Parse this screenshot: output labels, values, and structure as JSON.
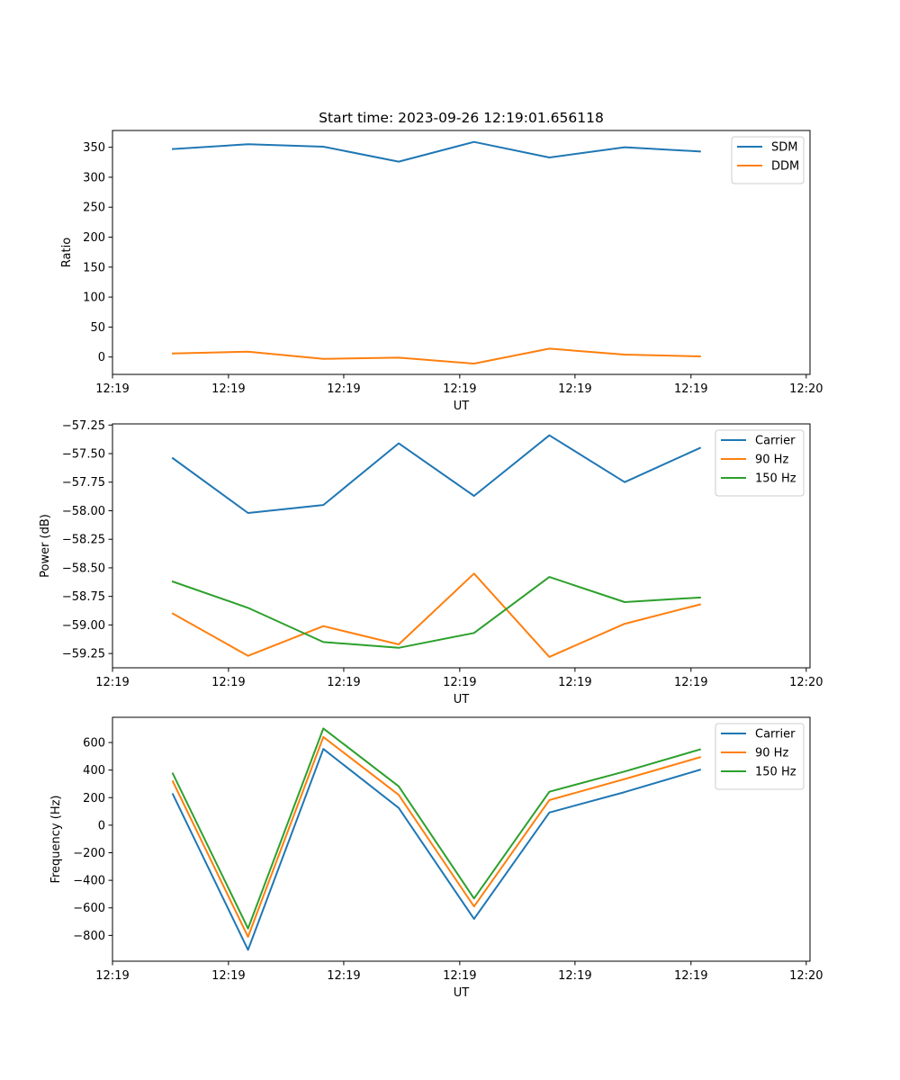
{
  "chart_data": [
    {
      "type": "line",
      "title": "Start time: 2023-09-26 12:19:01.656118",
      "xlabel": "UT",
      "ylabel": "Ratio",
      "xticks": [
        "12:19",
        "12:19",
        "12:19",
        "12:19",
        "12:19",
        "12:19",
        "12:20"
      ],
      "yticks": [
        0,
        50,
        100,
        150,
        200,
        250,
        300,
        350
      ],
      "ylim": [
        -29,
        378
      ],
      "grid": false,
      "legend": "top-right",
      "x": [
        1,
        2,
        3,
        4,
        5,
        6,
        7,
        8
      ],
      "series": [
        {
          "name": "SDM",
          "color": "#1f77b4",
          "values": [
            347,
            355,
            351,
            326,
            359,
            333,
            350,
            343
          ]
        },
        {
          "name": "DDM",
          "color": "#ff7f0e",
          "values": [
            6,
            9,
            -3,
            -1,
            -11,
            14,
            4,
            1
          ]
        }
      ]
    },
    {
      "type": "line",
      "title": "",
      "xlabel": "UT",
      "ylabel": "Power (dB)",
      "xticks": [
        "12:19",
        "12:19",
        "12:19",
        "12:19",
        "12:19",
        "12:19",
        "12:20"
      ],
      "yticks": [
        -57.25,
        -57.5,
        -57.75,
        -58.0,
        -58.25,
        -58.5,
        -58.75,
        -59.0,
        -59.25
      ],
      "ytick_labels": [
        "−57.25",
        "−57.50",
        "−57.75",
        "−58.00",
        "−58.25",
        "−58.50",
        "−58.75",
        "−59.00",
        "−59.25"
      ],
      "ylim": [
        -59.375,
        -57.24
      ],
      "grid": false,
      "legend": "top-right",
      "x": [
        1,
        2,
        3,
        4,
        5,
        6,
        7,
        8
      ],
      "series": [
        {
          "name": "Carrier",
          "color": "#1f77b4",
          "values": [
            -57.54,
            -58.02,
            -57.95,
            -57.41,
            -57.87,
            -57.34,
            -57.75,
            -57.45
          ]
        },
        {
          "name": "90 Hz",
          "color": "#ff7f0e",
          "values": [
            -58.9,
            -59.27,
            -59.01,
            -59.17,
            -58.55,
            -59.28,
            -58.99,
            -58.82
          ]
        },
        {
          "name": "150 Hz",
          "color": "#2ca02c",
          "values": [
            -58.62,
            -58.85,
            -59.15,
            -59.2,
            -59.07,
            -58.58,
            -58.8,
            -58.76
          ]
        }
      ]
    },
    {
      "type": "line",
      "title": "",
      "xlabel": "UT",
      "ylabel": "Frequency (Hz)",
      "xticks": [
        "12:19",
        "12:19",
        "12:19",
        "12:19",
        "12:19",
        "12:19",
        "12:20"
      ],
      "yticks": [
        -800,
        -600,
        -400,
        -200,
        0,
        200,
        400,
        600
      ],
      "ytick_labels": [
        "−800",
        "−600",
        "−400",
        "−200",
        "0",
        "200",
        "400",
        "600"
      ],
      "ylim": [
        -987,
        783
      ],
      "grid": false,
      "legend": "top-right",
      "x": [
        1,
        2,
        3,
        4,
        5,
        6,
        7,
        8
      ],
      "series": [
        {
          "name": "Carrier",
          "color": "#1f77b4",
          "values": [
            225,
            -905,
            553,
            125,
            -680,
            92,
            240,
            402
          ]
        },
        {
          "name": "90 Hz",
          "color": "#ff7f0e",
          "values": [
            318,
            -810,
            640,
            220,
            -590,
            182,
            335,
            493
          ]
        },
        {
          "name": "150 Hz",
          "color": "#2ca02c",
          "values": [
            375,
            -750,
            702,
            282,
            -532,
            243,
            390,
            550
          ]
        }
      ]
    }
  ]
}
